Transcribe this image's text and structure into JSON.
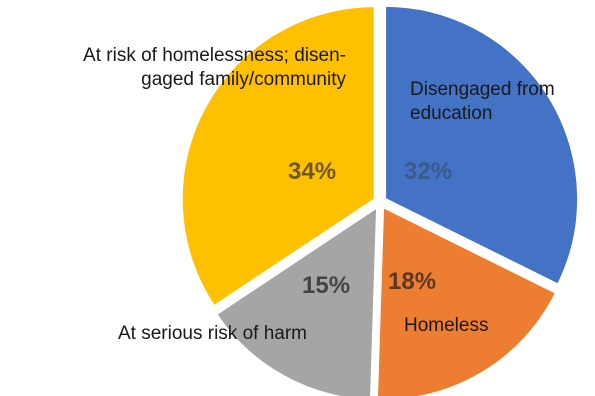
{
  "chart_data": {
    "type": "pie",
    "exploded": true,
    "slices": [
      {
        "label": "Disengaged from education",
        "value": 32,
        "value_label": "32%",
        "color": "#4472c4",
        "value_color": "#3a5a8c"
      },
      {
        "label": "Homeless",
        "value": 18,
        "value_label": "18%",
        "color": "#ed7d31",
        "value_color": "#5a3a22"
      },
      {
        "label": "At serious risk of harm",
        "value": 15,
        "value_label": "15%",
        "color": "#a5a5a5",
        "value_color": "#444444"
      },
      {
        "label": "At risk of homelessness; disengaged family/community",
        "value": 34,
        "value_label": "34%",
        "color": "#ffc000",
        "value_color": "#6b5a20"
      }
    ],
    "label_lines": {
      "education": [
        "Disengaged from",
        "education"
      ],
      "risk_homeless": [
        "At risk of homelessness; disen-",
        "gaged family/community"
      ]
    }
  }
}
